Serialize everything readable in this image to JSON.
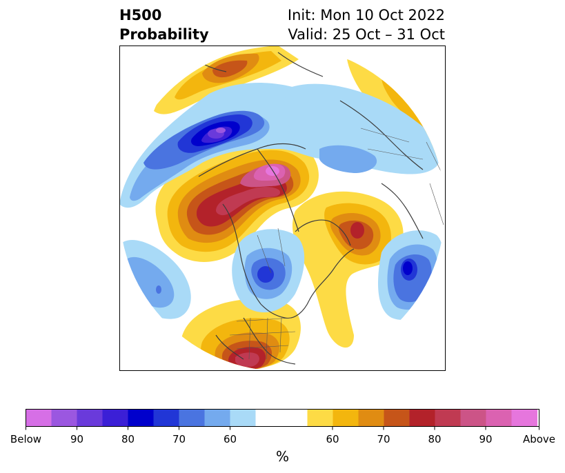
{
  "title": {
    "left_line1": "H500",
    "left_line2": "Probability",
    "right_line1": "Init: Mon 10 Oct 2022",
    "right_line2": "Valid: 25 Oct – 31 Oct"
  },
  "colorbar": {
    "unit": "%",
    "tick_labels": [
      "Below",
      "90",
      "80",
      "70",
      "60",
      "60",
      "70",
      "80",
      "90",
      "Above"
    ],
    "below_colors": [
      "#d66fe6",
      "#9b57e0",
      "#6a3adb",
      "#3b1fd6",
      "#0000cc",
      "#2136d6",
      "#4a74e0",
      "#74aaee",
      "#a9daf7"
    ],
    "neutral_color": "#ffffff",
    "above_colors": [
      "#fddb45",
      "#f3b60e",
      "#e08c12",
      "#c65519",
      "#b3222a",
      "#c03a52",
      "#cc5487",
      "#db62b1",
      "#e676dd"
    ]
  },
  "map": {
    "projection": "polar-stereographic",
    "region": "North America / North Pacific / Arctic"
  }
}
